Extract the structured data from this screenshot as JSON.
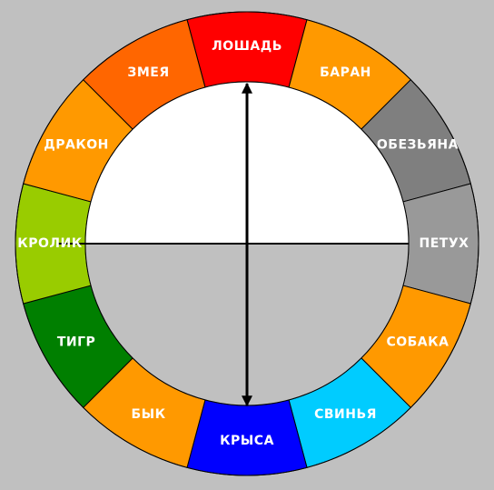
{
  "wheel": {
    "segments": [
      {
        "label": "ЛОШАДЬ",
        "color": "#ff0000"
      },
      {
        "label": "БАРАН",
        "color": "#ff9900"
      },
      {
        "label": "ОБЕЗЬЯНА",
        "color": "#7f7f7f"
      },
      {
        "label": "ПЕТУХ",
        "color": "#999999"
      },
      {
        "label": "СОБАКА",
        "color": "#ff9900"
      },
      {
        "label": "СВИНЬЯ",
        "color": "#00ccff"
      },
      {
        "label": "КРЫСА",
        "color": "#0000ff"
      },
      {
        "label": "БЫК",
        "color": "#ff9900"
      },
      {
        "label": "ТИГР",
        "color": "#007f00"
      },
      {
        "label": "КРОЛИК",
        "color": "#99cc00"
      },
      {
        "label": "ДРАКОН",
        "color": "#ff9900"
      },
      {
        "label": "ЗМЕЯ",
        "color": "#ff6600"
      }
    ]
  }
}
